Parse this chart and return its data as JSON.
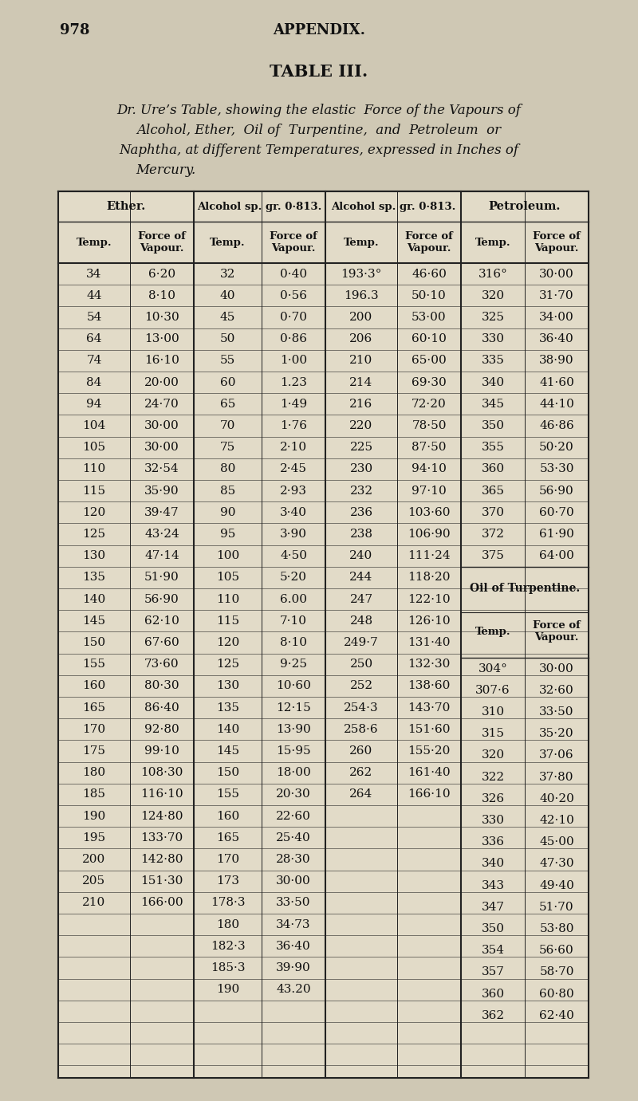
{
  "page_num": "978",
  "appendix": "APPENDIX.",
  "table_title": "TABLE III.",
  "desc_lines": [
    "Dr. Ure’s Table, showing the elastic  Force of the Vapours of",
    "Alcohol, Ether,  Oil of  Turpentine,  and  Petroleum  or",
    "Naphtha, at different Temperatures, expressed in Inches of",
    "Mercury."
  ],
  "ether_data": [
    [
      "34",
      "6·20"
    ],
    [
      "44",
      "8·10"
    ],
    [
      "54",
      "10·30"
    ],
    [
      "64",
      "13·00"
    ],
    [
      "74",
      "16·10"
    ],
    [
      "84",
      "20·00"
    ],
    [
      "94",
      "24·70"
    ],
    [
      "104",
      "30·00"
    ],
    [
      "105",
      "30·00"
    ],
    [
      "110",
      "32·54"
    ],
    [
      "115",
      "35·90"
    ],
    [
      "120",
      "39·47"
    ],
    [
      "125",
      "43·24"
    ],
    [
      "130",
      "47·14"
    ],
    [
      "135",
      "51·90"
    ],
    [
      "140",
      "56·90"
    ],
    [
      "145",
      "62·10"
    ],
    [
      "150",
      "67·60"
    ],
    [
      "155",
      "73·60"
    ],
    [
      "160",
      "80·30"
    ],
    [
      "165",
      "86·40"
    ],
    [
      "170",
      "92·80"
    ],
    [
      "175",
      "99·10"
    ],
    [
      "180",
      "108·30"
    ],
    [
      "185",
      "116·10"
    ],
    [
      "190",
      "124·80"
    ],
    [
      "195",
      "133·70"
    ],
    [
      "200",
      "142·80"
    ],
    [
      "205",
      "151·30"
    ],
    [
      "210",
      "166·00"
    ]
  ],
  "alc1_data": [
    [
      "32",
      "0·40"
    ],
    [
      "40",
      "0·56"
    ],
    [
      "45",
      "0·70"
    ],
    [
      "50",
      "0·86"
    ],
    [
      "55",
      "1·00"
    ],
    [
      "60",
      "1.23"
    ],
    [
      "65",
      "1·49"
    ],
    [
      "70",
      "1·76"
    ],
    [
      "75",
      "2·10"
    ],
    [
      "80",
      "2·45"
    ],
    [
      "85",
      "2·93"
    ],
    [
      "90",
      "3·40"
    ],
    [
      "95",
      "3·90"
    ],
    [
      "100",
      "4·50"
    ],
    [
      "105",
      "5·20"
    ],
    [
      "110",
      "6.00"
    ],
    [
      "115",
      "7·10"
    ],
    [
      "120",
      "8·10"
    ],
    [
      "125",
      "9·25"
    ],
    [
      "130",
      "10·60"
    ],
    [
      "135",
      "12·15"
    ],
    [
      "140",
      "13·90"
    ],
    [
      "145",
      "15·95"
    ],
    [
      "150",
      "18·00"
    ],
    [
      "155",
      "20·30"
    ],
    [
      "160",
      "22·60"
    ],
    [
      "165",
      "25·40"
    ],
    [
      "170",
      "28·30"
    ],
    [
      "173",
      "30·00"
    ],
    [
      "178·3",
      "33·50"
    ],
    [
      "180",
      "34·73"
    ],
    [
      "182·3",
      "36·40"
    ],
    [
      "185·3",
      "39·90"
    ],
    [
      "190",
      "43.20"
    ]
  ],
  "alc2_data": [
    [
      "193·3°",
      "46·60"
    ],
    [
      "196.3",
      "50·10"
    ],
    [
      "200",
      "53·00"
    ],
    [
      "206",
      "60·10"
    ],
    [
      "210",
      "65·00"
    ],
    [
      "214",
      "69·30"
    ],
    [
      "216",
      "72·20"
    ],
    [
      "220",
      "78·50"
    ],
    [
      "225",
      "87·50"
    ],
    [
      "230",
      "94·10"
    ],
    [
      "232",
      "97·10"
    ],
    [
      "236",
      "103·60"
    ],
    [
      "238",
      "106·90"
    ],
    [
      "240",
      "111·24"
    ],
    [
      "244",
      "118·20"
    ],
    [
      "247",
      "122·10"
    ],
    [
      "248",
      "126·10"
    ],
    [
      "249·7",
      "131·40"
    ],
    [
      "250",
      "132·30"
    ],
    [
      "252",
      "138·60"
    ],
    [
      "254·3",
      "143·70"
    ],
    [
      "258·6",
      "151·60"
    ],
    [
      "260",
      "155·20"
    ],
    [
      "262",
      "161·40"
    ],
    [
      "264",
      "166·10"
    ]
  ],
  "petro_data": [
    [
      "316°",
      "30·00"
    ],
    [
      "320",
      "31·70"
    ],
    [
      "325",
      "34·00"
    ],
    [
      "330",
      "36·40"
    ],
    [
      "335",
      "38·90"
    ],
    [
      "340",
      "41·60"
    ],
    [
      "345",
      "44·10"
    ],
    [
      "350",
      "46·86"
    ],
    [
      "355",
      "50·20"
    ],
    [
      "360",
      "53·30"
    ],
    [
      "365",
      "56·90"
    ],
    [
      "370",
      "60·70"
    ],
    [
      "372",
      "61·90"
    ],
    [
      "375",
      "64·00"
    ]
  ],
  "oil_data": [
    [
      "304°",
      "30·00"
    ],
    [
      "307·6",
      "32·60"
    ],
    [
      "310",
      "33·50"
    ],
    [
      "315",
      "35·20"
    ],
    [
      "320",
      "37·06"
    ],
    [
      "322",
      "37·80"
    ],
    [
      "326",
      "40·20"
    ],
    [
      "330",
      "42·10"
    ],
    [
      "336",
      "45·00"
    ],
    [
      "340",
      "47·30"
    ],
    [
      "343",
      "49·40"
    ],
    [
      "347",
      "51·70"
    ],
    [
      "350",
      "53·80"
    ],
    [
      "354",
      "56·60"
    ],
    [
      "357",
      "58·70"
    ],
    [
      "360",
      "60·80"
    ],
    [
      "362",
      "62·40"
    ]
  ],
  "bg_color": "#cfc8b4",
  "table_bg": "#e2dbc8"
}
